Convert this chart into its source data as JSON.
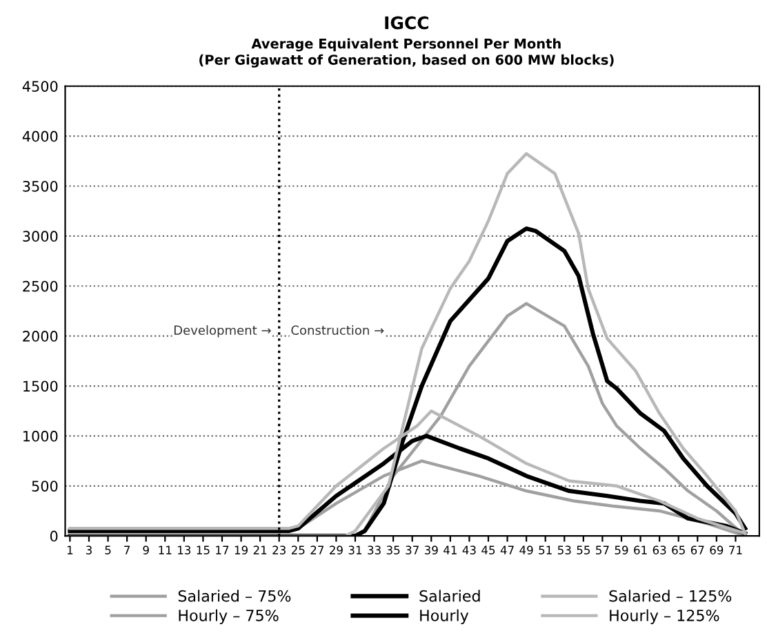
{
  "chart_data": {
    "type": "line",
    "title": "IGCC",
    "subtitle": "Average Equivalent Personnel Per Month\n(Per Gigawatt of Generation, based on 600 MW blocks)",
    "xlim": [
      0.5,
      73.5
    ],
    "xticks": [
      1,
      3,
      5,
      7,
      9,
      11,
      13,
      15,
      17,
      19,
      21,
      23,
      25,
      27,
      29,
      31,
      33,
      35,
      37,
      39,
      41,
      43,
      45,
      47,
      49,
      51,
      53,
      55,
      57,
      59,
      61,
      63,
      65,
      67,
      69,
      71
    ],
    "ylim": [
      0,
      4500
    ],
    "yticks": [
      0,
      500,
      1000,
      1500,
      2000,
      2500,
      3000,
      3500,
      4000,
      4500
    ],
    "grid": "y",
    "legend": "bottom",
    "line_style": "solid",
    "marker": "none",
    "ref_lines": [
      {
        "axis": "x",
        "value": 23,
        "color": "#000000",
        "line_style": "dotted"
      }
    ],
    "annotations": [
      "Development →",
      "Construction →"
    ],
    "series": [
      {
        "name": "Salaried – 75%",
        "color": "#a0a0a0",
        "x": [
          1,
          24,
          25,
          29,
          34,
          38,
          44,
          49,
          54,
          58,
          63,
          68,
          72
        ],
        "values": [
          50,
          50,
          75,
          325,
          600,
          750,
          600,
          450,
          350,
          300,
          250,
          125,
          0
        ]
      },
      {
        "name": "Hourly – 75%",
        "color": "#a0a0a0",
        "x": [
          1,
          31,
          32,
          35,
          40,
          43,
          47,
          49,
          53,
          55.5,
          57,
          58.5,
          61,
          63.5,
          66,
          69,
          72
        ],
        "values": [
          0,
          0,
          50,
          600,
          1200,
          1700,
          2200,
          2325,
          2100,
          1700,
          1325,
          1100,
          875,
          675,
          450,
          250,
          0
        ]
      },
      {
        "name": "Salaried",
        "color": "#000000",
        "x": [
          1,
          24,
          25,
          29,
          34,
          37,
          38.5,
          42,
          45,
          49,
          53.5,
          57.5,
          61,
          63.5,
          66,
          70,
          72
        ],
        "values": [
          50,
          50,
          75,
          400,
          725,
          950,
          1000,
          875,
          775,
          600,
          450,
          400,
          350,
          325,
          175,
          100,
          25
        ]
      },
      {
        "name": "Hourly",
        "color": "#000000",
        "x": [
          1,
          31,
          32,
          34,
          36,
          38,
          41,
          45,
          47,
          49,
          50,
          53,
          54.5,
          56,
          57.5,
          58.5,
          61,
          63.5,
          65.5,
          68,
          71,
          72
        ],
        "values": [
          0,
          0,
          50,
          325,
          950,
          1500,
          2150,
          2575,
          2950,
          3075,
          3050,
          2850,
          2600,
          2025,
          1550,
          1475,
          1225,
          1050,
          775,
          500,
          225,
          75
        ]
      },
      {
        "name": "Salaried – 125%",
        "color": "#b8b8b8",
        "x": [
          1,
          24,
          25,
          29,
          34,
          37.5,
          39,
          44,
          49,
          53.5,
          58.5,
          63,
          67,
          72
        ],
        "values": [
          75,
          75,
          100,
          500,
          875,
          1100,
          1250,
          1000,
          725,
          550,
          500,
          350,
          175,
          25
        ]
      },
      {
        "name": "Hourly – 125%",
        "color": "#b8b8b8",
        "x": [
          1,
          30,
          31,
          34.5,
          38,
          41,
          43,
          45,
          47,
          49,
          52,
          54.5,
          55.5,
          57.5,
          60.5,
          63,
          65.5,
          68,
          71,
          72
        ],
        "values": [
          0,
          0,
          50,
          500,
          1875,
          2475,
          2750,
          3150,
          3625,
          3825,
          3625,
          3025,
          2475,
          1975,
          1650,
          1225,
          875,
          600,
          250,
          25
        ]
      }
    ]
  }
}
